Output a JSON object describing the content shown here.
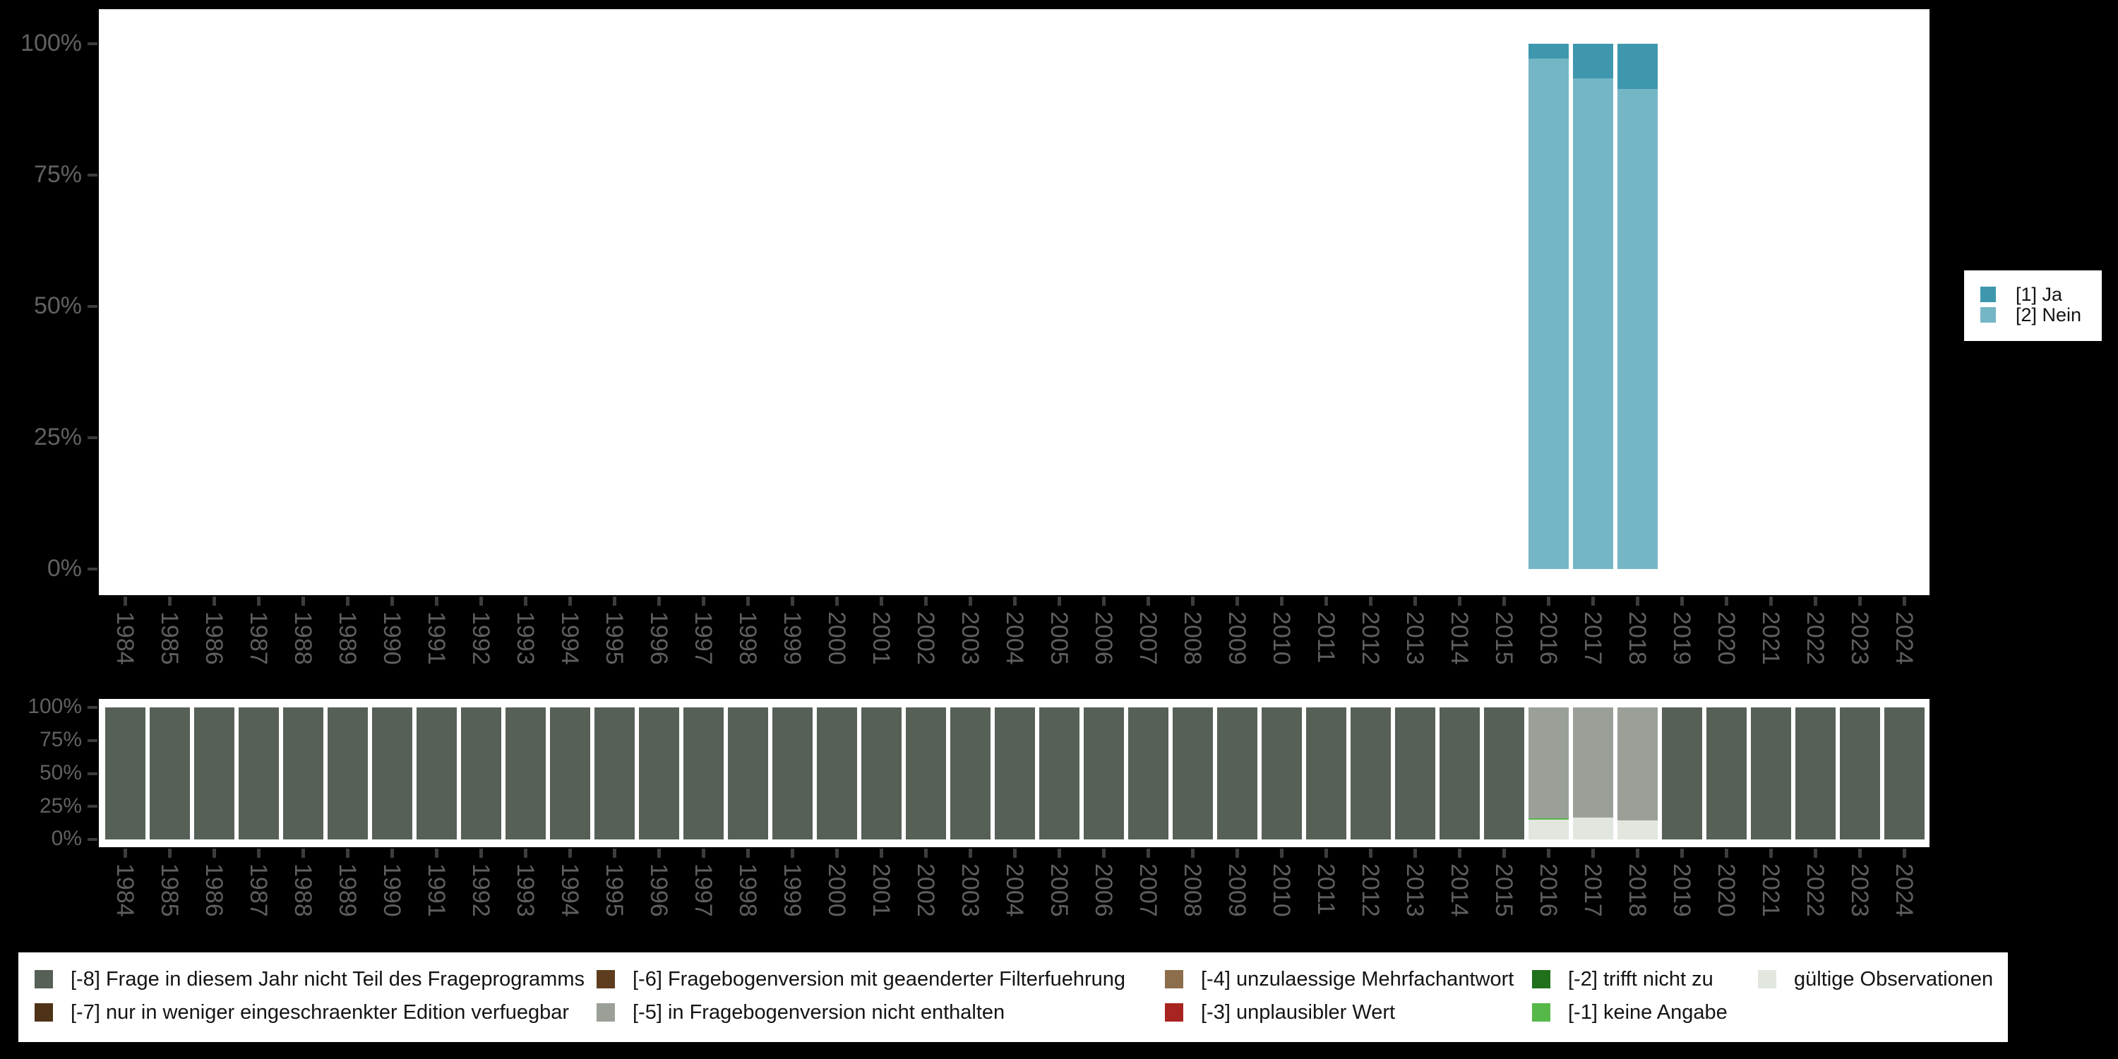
{
  "colors": {
    "ja": "#3e97ad",
    "nein": "#75b6c6",
    "-8": "#566057",
    "-7": "#4f3318",
    "-6": "#5e3d1e",
    "-5": "#9aa098",
    "-4": "#8c6d4c",
    "-3": "#a82420",
    "-2": "#20701c",
    "-1": "#55b849",
    "valid": "#e1e6df"
  },
  "axis": {
    "y_ticks": [
      {
        "pct": 0,
        "label": "0%"
      },
      {
        "pct": 25,
        "label": "25%"
      },
      {
        "pct": 50,
        "label": "50%"
      },
      {
        "pct": 75,
        "label": "75%"
      },
      {
        "pct": 100,
        "label": "100%"
      }
    ]
  },
  "years": [
    1984,
    1985,
    1986,
    1987,
    1988,
    1989,
    1990,
    1991,
    1992,
    1993,
    1994,
    1995,
    1996,
    1997,
    1998,
    1999,
    2000,
    2001,
    2002,
    2003,
    2004,
    2005,
    2006,
    2007,
    2008,
    2009,
    2010,
    2011,
    2012,
    2013,
    2014,
    2015,
    2016,
    2017,
    2018,
    2019,
    2020,
    2021,
    2022,
    2023,
    2024
  ],
  "top_legend": {
    "items": [
      {
        "key": "ja",
        "label": "[1] Ja"
      },
      {
        "key": "nein",
        "label": "[2] Nein"
      }
    ]
  },
  "missing_legend": {
    "columns": [
      [
        {
          "key": "-8",
          "label": "[-8] Frage in diesem Jahr nicht Teil des Frageprogramms"
        },
        {
          "key": "-7",
          "label": "[-7] nur in weniger eingeschraenkter Edition verfuegbar"
        }
      ],
      [
        {
          "key": "-6",
          "label": "[-6] Fragebogenversion mit geaenderter Filterfuehrung"
        },
        {
          "key": "-5",
          "label": "[-5] in Fragebogenversion nicht enthalten"
        }
      ],
      [
        {
          "key": "-4",
          "label": "[-4] unzulaessige Mehrfachantwort"
        },
        {
          "key": "-3",
          "label": "[-3] unplausibler Wert"
        }
      ],
      [
        {
          "key": "-2",
          "label": "[-2] trifft nicht zu"
        },
        {
          "key": "-1",
          "label": "[-1] keine Angabe"
        }
      ],
      [
        {
          "key": "valid",
          "label": "gültige Observationen"
        }
      ]
    ]
  },
  "chart_data": [
    {
      "id": "observed-values",
      "type": "bar",
      "stacked": true,
      "unit": "percent",
      "title": "",
      "xlabel": "",
      "ylabel": "",
      "ylim": [
        0,
        100
      ],
      "grid": false,
      "legend_position": "right",
      "categories_ref": "years",
      "series": [
        {
          "name": "[1] Ja",
          "color_key": "ja",
          "values": [
            null,
            null,
            null,
            null,
            null,
            null,
            null,
            null,
            null,
            null,
            null,
            null,
            null,
            null,
            null,
            null,
            null,
            null,
            null,
            null,
            null,
            null,
            null,
            null,
            null,
            null,
            null,
            null,
            null,
            null,
            null,
            null,
            2.8,
            6.6,
            8.6,
            null,
            null,
            null,
            null,
            null,
            null
          ]
        },
        {
          "name": "[2] Nein",
          "color_key": "nein",
          "values": [
            null,
            null,
            null,
            null,
            null,
            null,
            null,
            null,
            null,
            null,
            null,
            null,
            null,
            null,
            null,
            null,
            null,
            null,
            null,
            null,
            null,
            null,
            null,
            null,
            null,
            null,
            null,
            null,
            null,
            null,
            null,
            null,
            97.2,
            93.4,
            91.4,
            null,
            null,
            null,
            null,
            null,
            null
          ]
        }
      ]
    },
    {
      "id": "missing-values",
      "type": "bar",
      "stacked": true,
      "unit": "percent",
      "title": "",
      "xlabel": "",
      "ylabel": "",
      "ylim": [
        0,
        100
      ],
      "grid": false,
      "legend_position": "bottom",
      "categories_ref": "years",
      "series": [
        {
          "name": "[-5] in Fragebogenversion nicht enthalten",
          "color_key": "-5",
          "values": [
            null,
            null,
            null,
            null,
            null,
            null,
            null,
            null,
            null,
            null,
            null,
            null,
            null,
            null,
            null,
            null,
            null,
            null,
            null,
            null,
            null,
            null,
            null,
            null,
            null,
            null,
            null,
            null,
            null,
            null,
            null,
            null,
            84,
            83.5,
            85.5,
            null,
            null,
            null,
            null,
            null,
            null
          ]
        },
        {
          "name": "[-1] keine Angabe",
          "color_key": "-1",
          "values": [
            null,
            null,
            null,
            null,
            null,
            null,
            null,
            null,
            null,
            null,
            null,
            null,
            null,
            null,
            null,
            null,
            null,
            null,
            null,
            null,
            null,
            null,
            null,
            null,
            null,
            null,
            null,
            null,
            null,
            null,
            null,
            null,
            1,
            null,
            null,
            null,
            null,
            null,
            null,
            null,
            null
          ]
        },
        {
          "name": "gültige Observationen",
          "color_key": "valid",
          "values": [
            null,
            null,
            null,
            null,
            null,
            null,
            null,
            null,
            null,
            null,
            null,
            null,
            null,
            null,
            null,
            null,
            null,
            null,
            null,
            null,
            null,
            null,
            null,
            null,
            null,
            null,
            null,
            null,
            null,
            null,
            null,
            null,
            15,
            16.5,
            14.5,
            null,
            null,
            null,
            null,
            null,
            null
          ]
        },
        {
          "name": "[-8] Frage in diesem Jahr nicht Teil des Frageprogramms",
          "color_key": "-8",
          "values": [
            100,
            100,
            100,
            100,
            100,
            100,
            100,
            100,
            100,
            100,
            100,
            100,
            100,
            100,
            100,
            100,
            100,
            100,
            100,
            100,
            100,
            100,
            100,
            100,
            100,
            100,
            100,
            100,
            100,
            100,
            100,
            100,
            null,
            null,
            null,
            100,
            100,
            100,
            100,
            100,
            100
          ]
        }
      ]
    }
  ]
}
